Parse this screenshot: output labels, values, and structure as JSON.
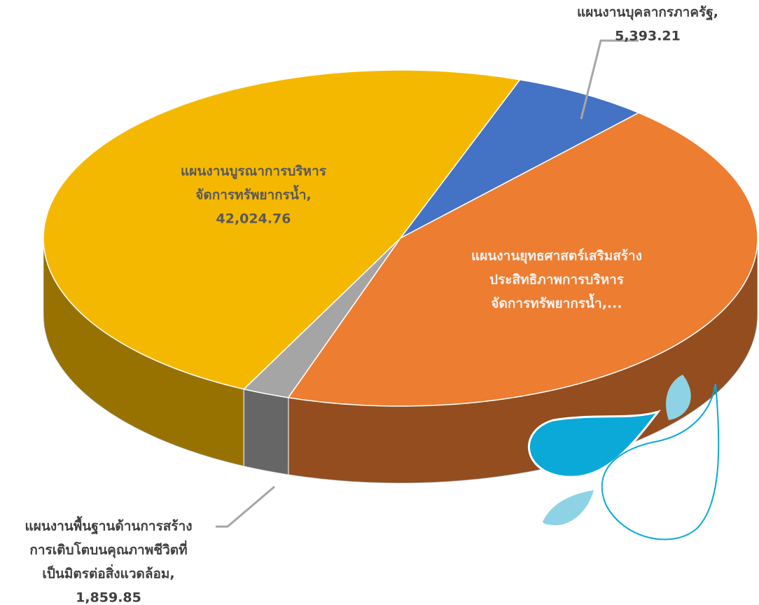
{
  "chart_data": {
    "type": "pie3d",
    "categories": [
      [
        "แผนงานบูรณาการบริหาร",
        "จัดการทรัพยากรน้ำ,"
      ],
      [
        "แผนงานบุคลากรภาครัฐ,"
      ],
      [
        "แผนงานยุทธศาสตร์เสริมสร้าง",
        "ประสิทธิภาพการบริหาร",
        "จัดการทรัพยากรน้ำ,..."
      ],
      [
        "แผนงานพื้นฐานด้านการสร้าง",
        "การเติบโตบนคุณภาพชีวิตที่",
        "เป็นมิตรต่อสิ่งแวดล้อม,"
      ]
    ],
    "values": [
      42024.76,
      5393.21,
      37900,
      1859.85
    ],
    "value_labels": [
      "42,024.76",
      "5,393.21",
      null,
      "1,859.85"
    ],
    "colors": [
      "#f5b800",
      "#4472c4",
      "#ed7d31",
      "#a5a5a5"
    ]
  }
}
